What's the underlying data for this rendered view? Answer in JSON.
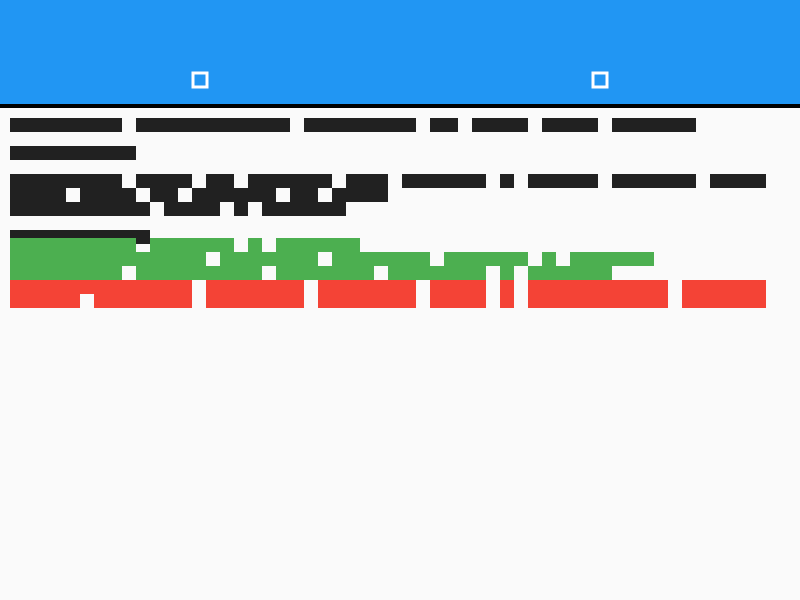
{
  "app": {
    "title": "",
    "accent_color": "#2196f3",
    "background_color": "#fafafa"
  },
  "tabs": [
    {
      "icon": "square-outline-icon"
    },
    {
      "icon": "square-outline-icon"
    }
  ],
  "content": {
    "text_color": "#212121",
    "paragraph_green_color": "#4caf50",
    "paragraph_red_color": "#f44336"
  }
}
